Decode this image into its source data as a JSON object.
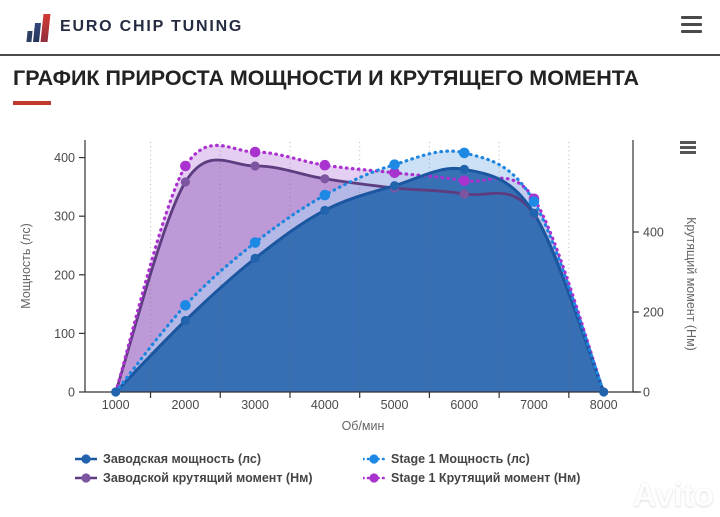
{
  "header": {
    "brand": "EURO CHIP TUNING",
    "logo_icon": "bar-chart-icon",
    "menu_icon": "hamburger-icon"
  },
  "page": {
    "title": "ГРАФИК ПРИРОСТА МОЩНОСТИ И КРУТЯЩЕГО МОМЕНТА",
    "accent_color": "#c0392b"
  },
  "chart": {
    "menu_icon": "hamburger-icon"
  },
  "watermark": {
    "text": "Avito"
  },
  "chart_data": {
    "type": "area",
    "x": [
      1000,
      2000,
      3000,
      4000,
      5000,
      6000,
      7000,
      8000
    ],
    "xlabel": "Об/мин",
    "ylabel_left": "Мощность (лс)",
    "ylabel_right": "Крутящий момент (Нм)",
    "y_left_ticks": [
      0,
      100,
      200,
      300,
      400
    ],
    "y_right_ticks": [
      0,
      200,
      400
    ],
    "x_ticks_minor": [
      1500,
      2500,
      3500,
      4500,
      5500,
      6500,
      7500
    ],
    "ylim_left": [
      0,
      430
    ],
    "ylim_right": [
      0,
      630
    ],
    "xlim": [
      560,
      8420
    ],
    "grid": "vertical-dotted",
    "legend_position": "bottom",
    "series": [
      {
        "name": "Заводская мощность (лс)",
        "axis": "left",
        "style": "solid",
        "color": "#1b57a0",
        "fill": "#2e6ab0",
        "fill_opacity": 0.94,
        "marker_color": "#2263ae",
        "values": [
          0,
          122,
          228,
          310,
          352,
          380,
          305,
          0
        ]
      },
      {
        "name": "Stage 1 Мощность (лс)",
        "axis": "left",
        "style": "dotted",
        "color": "#1f86e0",
        "fill": "#abcdf0",
        "fill_opacity": 0.6,
        "marker_color": "#1e88e5",
        "values": [
          0,
          148,
          255,
          336,
          388,
          408,
          325,
          0
        ]
      },
      {
        "name": "Заводской крутящий момент (Нм)",
        "axis": "right",
        "style": "solid",
        "color": "#5d3c80",
        "fill": "#b690d2",
        "fill_opacity": 0.85,
        "marker_color": "#7d55a0",
        "values": [
          0,
          525,
          565,
          533,
          510,
          495,
          445,
          0
        ]
      },
      {
        "name": "Stage 1 Крутящий момент (Нм)",
        "axis": "right",
        "style": "dotted",
        "color": "#aa30d0",
        "fill": "#ddc2ee",
        "fill_opacity": 0.8,
        "marker_color": "#a833cf",
        "values": [
          0,
          565,
          600,
          567,
          548,
          528,
          483,
          0
        ]
      }
    ]
  }
}
